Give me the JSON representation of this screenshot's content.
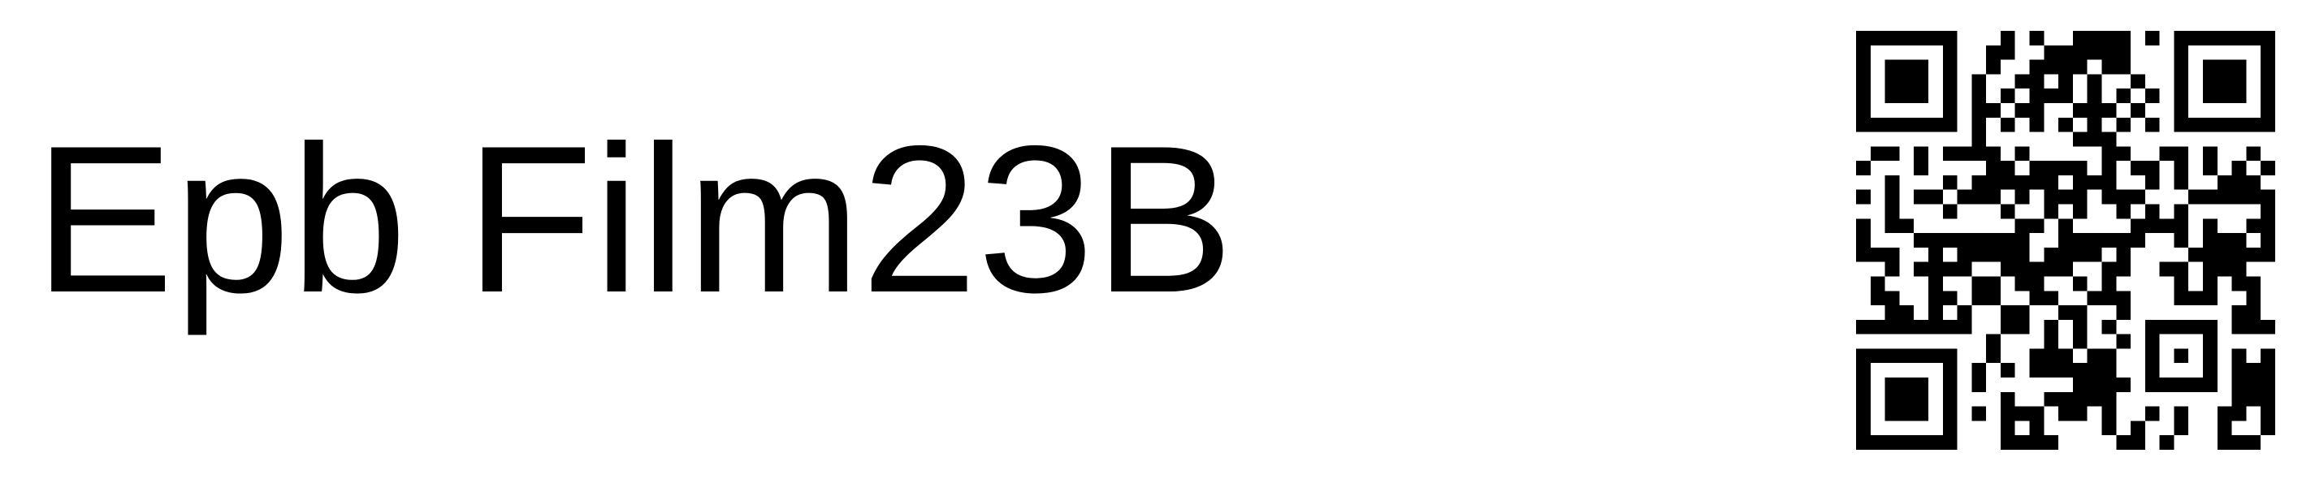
{
  "label": {
    "title": "Epb Film23B"
  },
  "qr": {
    "icon": "qr-code-icon",
    "color": "#000000",
    "background": "#ffffff"
  }
}
